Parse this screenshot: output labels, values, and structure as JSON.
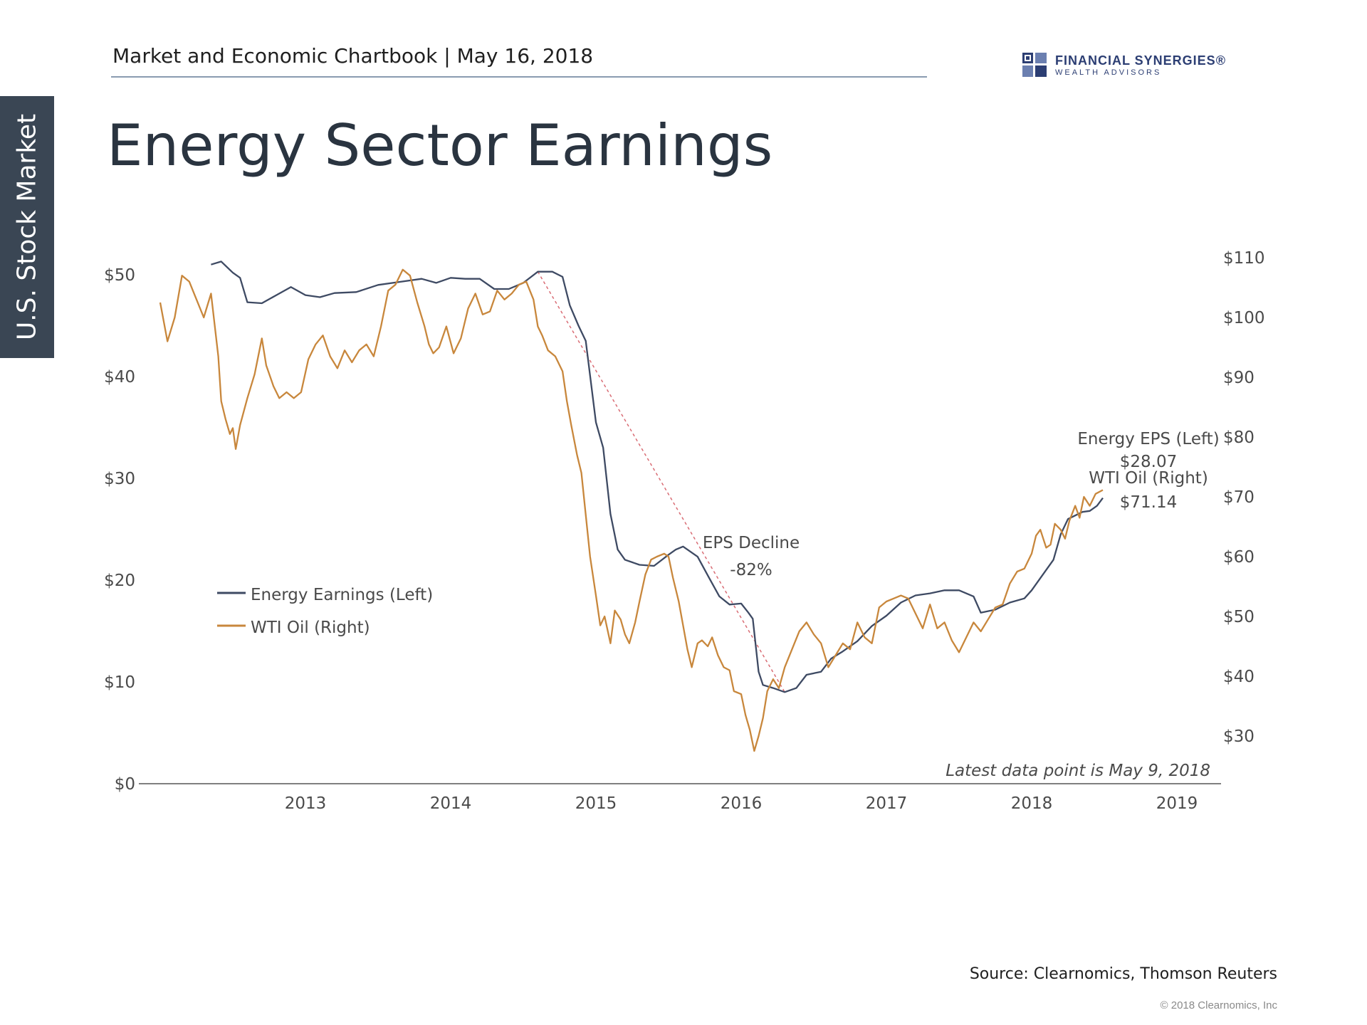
{
  "side_tab": "U.S. Stock Market",
  "header": {
    "text": "Market and Economic Chartbook | May 16, 2018"
  },
  "logo": {
    "name": "FINANCIAL SYNERGIES®",
    "sub": "WEALTH ADVISORS",
    "color": "#2c3e73"
  },
  "page_title": "Energy Sector Earnings",
  "footer": {
    "source": "Source: Clearnomics, Thomson Reuters",
    "copyright": "© 2018 Clearnomics, Inc"
  },
  "chart_data": {
    "type": "line",
    "title": "Energy Sector Earnings",
    "grid": false,
    "legend": {
      "position": "center-left",
      "entries": [
        "Energy Earnings (Left)",
        "WTI Oil (Right)"
      ]
    },
    "x_range": [
      2012.0,
      2019.3
    ],
    "x_ticks": [
      "2013",
      "2014",
      "2015",
      "2016",
      "2017",
      "2018",
      "2019"
    ],
    "y_left": {
      "ticks": [
        "$0",
        "$10",
        "$20",
        "$30",
        "$40",
        "$50"
      ],
      "range": [
        0,
        50
      ]
    },
    "y_right": {
      "ticks": [
        "$30",
        "$40",
        "$50",
        "$60",
        "$70",
        "$80",
        "$90",
        "$100",
        "$110"
      ],
      "range": [
        30,
        110
      ]
    },
    "series": [
      {
        "name": "Energy Earnings (Left)",
        "axis": "left",
        "color": "#3e4a63",
        "points": [
          [
            2012.35,
            51.0
          ],
          [
            2012.42,
            51.3
          ],
          [
            2012.5,
            50.2
          ],
          [
            2012.55,
            49.7
          ],
          [
            2012.6,
            47.3
          ],
          [
            2012.7,
            47.2
          ],
          [
            2012.8,
            48.0
          ],
          [
            2012.9,
            48.8
          ],
          [
            2013.0,
            48.0
          ],
          [
            2013.1,
            47.8
          ],
          [
            2013.2,
            48.2
          ],
          [
            2013.35,
            48.3
          ],
          [
            2013.5,
            49.0
          ],
          [
            2013.65,
            49.3
          ],
          [
            2013.8,
            49.6
          ],
          [
            2013.9,
            49.2
          ],
          [
            2014.0,
            49.7
          ],
          [
            2014.1,
            49.6
          ],
          [
            2014.2,
            49.6
          ],
          [
            2014.3,
            48.6
          ],
          [
            2014.4,
            48.6
          ],
          [
            2014.5,
            49.2
          ],
          [
            2014.6,
            50.3
          ],
          [
            2014.7,
            50.3
          ],
          [
            2014.77,
            49.8
          ],
          [
            2014.82,
            47.0
          ],
          [
            2014.88,
            45.0
          ],
          [
            2014.93,
            43.5
          ],
          [
            2015.0,
            35.5
          ],
          [
            2015.05,
            33.0
          ],
          [
            2015.1,
            26.5
          ],
          [
            2015.15,
            23.0
          ],
          [
            2015.2,
            22.0
          ],
          [
            2015.3,
            21.5
          ],
          [
            2015.4,
            21.4
          ],
          [
            2015.5,
            22.5
          ],
          [
            2015.55,
            23.0
          ],
          [
            2015.6,
            23.3
          ],
          [
            2015.7,
            22.3
          ],
          [
            2015.78,
            20.2
          ],
          [
            2015.85,
            18.4
          ],
          [
            2015.92,
            17.6
          ],
          [
            2016.0,
            17.7
          ],
          [
            2016.05,
            16.8
          ],
          [
            2016.08,
            16.2
          ],
          [
            2016.12,
            11.0
          ],
          [
            2016.15,
            9.7
          ],
          [
            2016.22,
            9.4
          ],
          [
            2016.3,
            9.0
          ],
          [
            2016.38,
            9.4
          ],
          [
            2016.45,
            10.7
          ],
          [
            2016.55,
            11.0
          ],
          [
            2016.62,
            12.3
          ],
          [
            2016.7,
            13.0
          ],
          [
            2016.8,
            14.0
          ],
          [
            2016.9,
            15.5
          ],
          [
            2017.0,
            16.5
          ],
          [
            2017.1,
            17.8
          ],
          [
            2017.2,
            18.5
          ],
          [
            2017.3,
            18.7
          ],
          [
            2017.4,
            19.0
          ],
          [
            2017.5,
            19.0
          ],
          [
            2017.6,
            18.4
          ],
          [
            2017.65,
            16.8
          ],
          [
            2017.75,
            17.1
          ],
          [
            2017.85,
            17.8
          ],
          [
            2017.95,
            18.2
          ],
          [
            2018.0,
            19.0
          ],
          [
            2018.1,
            21.0
          ],
          [
            2018.15,
            22.0
          ],
          [
            2018.2,
            24.5
          ],
          [
            2018.25,
            26.0
          ],
          [
            2018.35,
            26.7
          ],
          [
            2018.4,
            26.8
          ],
          [
            2018.45,
            27.3
          ],
          [
            2018.49,
            28.07
          ]
        ]
      },
      {
        "name": "WTI Oil (Right)",
        "axis": "right",
        "color": "#c8873c",
        "points": [
          [
            2012.0,
            102.5
          ],
          [
            2012.05,
            96.0
          ],
          [
            2012.1,
            100.0
          ],
          [
            2012.15,
            107.0
          ],
          [
            2012.2,
            106.0
          ],
          [
            2012.25,
            103.0
          ],
          [
            2012.3,
            100.0
          ],
          [
            2012.35,
            104.0
          ],
          [
            2012.4,
            93.5
          ],
          [
            2012.42,
            86.0
          ],
          [
            2012.45,
            83.0
          ],
          [
            2012.48,
            80.5
          ],
          [
            2012.5,
            81.5
          ],
          [
            2012.52,
            78.0
          ],
          [
            2012.55,
            82.0
          ],
          [
            2012.6,
            86.5
          ],
          [
            2012.65,
            90.5
          ],
          [
            2012.7,
            96.5
          ],
          [
            2012.73,
            92.0
          ],
          [
            2012.78,
            88.5
          ],
          [
            2012.82,
            86.5
          ],
          [
            2012.87,
            87.5
          ],
          [
            2012.92,
            86.5
          ],
          [
            2012.97,
            87.5
          ],
          [
            2013.02,
            93.0
          ],
          [
            2013.07,
            95.5
          ],
          [
            2013.12,
            97.0
          ],
          [
            2013.17,
            93.5
          ],
          [
            2013.22,
            91.5
          ],
          [
            2013.27,
            94.5
          ],
          [
            2013.32,
            92.5
          ],
          [
            2013.37,
            94.5
          ],
          [
            2013.42,
            95.5
          ],
          [
            2013.47,
            93.5
          ],
          [
            2013.52,
            98.5
          ],
          [
            2013.57,
            104.5
          ],
          [
            2013.62,
            105.5
          ],
          [
            2013.67,
            108.0
          ],
          [
            2013.72,
            107.0
          ],
          [
            2013.77,
            102.5
          ],
          [
            2013.82,
            98.5
          ],
          [
            2013.85,
            95.5
          ],
          [
            2013.88,
            94.0
          ],
          [
            2013.92,
            95.0
          ],
          [
            2013.97,
            98.5
          ],
          [
            2014.02,
            94.0
          ],
          [
            2014.07,
            96.5
          ],
          [
            2014.12,
            101.5
          ],
          [
            2014.17,
            104.0
          ],
          [
            2014.22,
            100.5
          ],
          [
            2014.27,
            101.0
          ],
          [
            2014.32,
            104.5
          ],
          [
            2014.37,
            103.0
          ],
          [
            2014.42,
            104.0
          ],
          [
            2014.47,
            105.5
          ],
          [
            2014.52,
            106.0
          ],
          [
            2014.57,
            103.0
          ],
          [
            2014.6,
            98.5
          ],
          [
            2014.63,
            97.0
          ],
          [
            2014.67,
            94.5
          ],
          [
            2014.72,
            93.5
          ],
          [
            2014.77,
            91.0
          ],
          [
            2014.8,
            86.0
          ],
          [
            2014.83,
            82.0
          ],
          [
            2014.87,
            77.0
          ],
          [
            2014.9,
            74.0
          ],
          [
            2014.93,
            67.0
          ],
          [
            2014.96,
            60.0
          ],
          [
            2015.0,
            53.5
          ],
          [
            2015.03,
            48.5
          ],
          [
            2015.06,
            50.0
          ],
          [
            2015.1,
            45.5
          ],
          [
            2015.13,
            51.0
          ],
          [
            2015.17,
            49.5
          ],
          [
            2015.2,
            47.0
          ],
          [
            2015.23,
            45.5
          ],
          [
            2015.27,
            49.0
          ],
          [
            2015.3,
            52.5
          ],
          [
            2015.34,
            57.0
          ],
          [
            2015.38,
            59.5
          ],
          [
            2015.42,
            60.0
          ],
          [
            2015.47,
            60.5
          ],
          [
            2015.5,
            60.0
          ],
          [
            2015.53,
            56.5
          ],
          [
            2015.57,
            52.5
          ],
          [
            2015.6,
            48.5
          ],
          [
            2015.63,
            44.5
          ],
          [
            2015.66,
            41.5
          ],
          [
            2015.7,
            45.5
          ],
          [
            2015.73,
            46.0
          ],
          [
            2015.77,
            45.0
          ],
          [
            2015.8,
            46.5
          ],
          [
            2015.84,
            43.5
          ],
          [
            2015.88,
            41.5
          ],
          [
            2015.92,
            41.0
          ],
          [
            2015.95,
            37.5
          ],
          [
            2016.0,
            37.0
          ],
          [
            2016.03,
            33.5
          ],
          [
            2016.06,
            31.0
          ],
          [
            2016.09,
            27.5
          ],
          [
            2016.12,
            30.0
          ],
          [
            2016.15,
            33.0
          ],
          [
            2016.18,
            37.5
          ],
          [
            2016.22,
            39.5
          ],
          [
            2016.26,
            38.0
          ],
          [
            2016.3,
            41.5
          ],
          [
            2016.35,
            44.5
          ],
          [
            2016.4,
            47.5
          ],
          [
            2016.45,
            49.0
          ],
          [
            2016.5,
            47.0
          ],
          [
            2016.55,
            45.5
          ],
          [
            2016.6,
            41.5
          ],
          [
            2016.65,
            43.5
          ],
          [
            2016.7,
            45.5
          ],
          [
            2016.75,
            44.5
          ],
          [
            2016.8,
            49.0
          ],
          [
            2016.85,
            46.5
          ],
          [
            2016.9,
            45.5
          ],
          [
            2016.95,
            51.5
          ],
          [
            2017.0,
            52.5
          ],
          [
            2017.05,
            53.0
          ],
          [
            2017.1,
            53.5
          ],
          [
            2017.15,
            53.0
          ],
          [
            2017.2,
            50.5
          ],
          [
            2017.25,
            48.0
          ],
          [
            2017.3,
            52.0
          ],
          [
            2017.35,
            48.0
          ],
          [
            2017.4,
            49.0
          ],
          [
            2017.45,
            46.0
          ],
          [
            2017.5,
            44.0
          ],
          [
            2017.55,
            46.5
          ],
          [
            2017.6,
            49.0
          ],
          [
            2017.65,
            47.5
          ],
          [
            2017.7,
            49.5
          ],
          [
            2017.75,
            51.5
          ],
          [
            2017.8,
            52.0
          ],
          [
            2017.85,
            55.5
          ],
          [
            2017.9,
            57.5
          ],
          [
            2017.95,
            58.0
          ],
          [
            2018.0,
            60.5
          ],
          [
            2018.03,
            63.5
          ],
          [
            2018.06,
            64.5
          ],
          [
            2018.1,
            61.5
          ],
          [
            2018.13,
            62.0
          ],
          [
            2018.16,
            65.5
          ],
          [
            2018.2,
            64.5
          ],
          [
            2018.23,
            63.0
          ],
          [
            2018.26,
            66.0
          ],
          [
            2018.3,
            68.5
          ],
          [
            2018.33,
            66.5
          ],
          [
            2018.36,
            70.0
          ],
          [
            2018.4,
            68.5
          ],
          [
            2018.44,
            70.5
          ],
          [
            2018.49,
            71.14
          ]
        ]
      }
    ],
    "annotations": {
      "decline_label": "EPS Decline",
      "decline_value": "-82%",
      "decline_from": [
        2014.6,
        50.3
      ],
      "decline_to": [
        2016.3,
        9.0
      ],
      "eps_end_label": "Energy EPS (Left)",
      "eps_end_value": "$28.07",
      "oil_end_label": "WTI Oil (Right)",
      "oil_end_value": "$71.14",
      "note": "Latest data point is May 9, 2018",
      "decline_color": "#d96c74"
    }
  }
}
